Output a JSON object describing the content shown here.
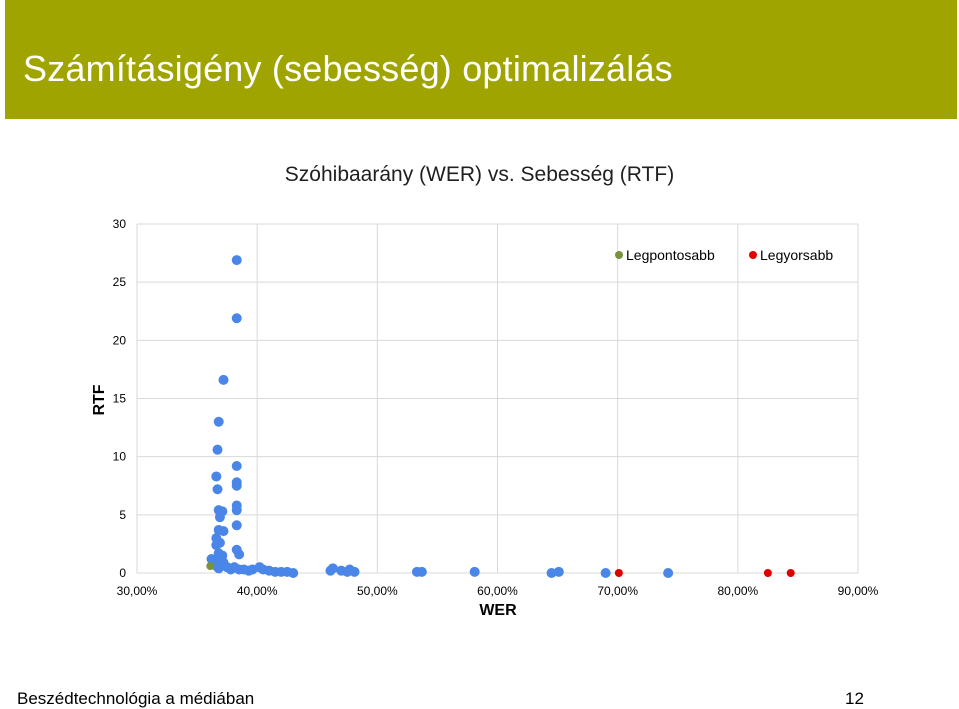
{
  "slide": {
    "title": "Számításigény (sebesség) optimalizálás",
    "footer_left": "Beszédtechnológia a médiában",
    "page_number": "12",
    "accent_color": "#a0a400"
  },
  "chart_data": {
    "type": "scatter",
    "title": "Szóhibaarány (WER) vs. Sebesség (RTF)",
    "xlabel": "WER",
    "ylabel": "RTF",
    "xlim": [
      0.3,
      0.9
    ],
    "ylim": [
      0,
      30
    ],
    "xticks": [
      "30,00%",
      "40,00%",
      "50,00%",
      "60,00%",
      "70,00%",
      "80,00%",
      "90,00%"
    ],
    "yticks": [
      "0",
      "5",
      "10",
      "15",
      "20",
      "25",
      "30"
    ],
    "grid": true,
    "legend_position": "top-right",
    "series": [
      {
        "color": "#4a86e8",
        "points": [
          [
            0.383,
            26.9
          ],
          [
            0.383,
            21.9
          ],
          [
            0.372,
            16.6
          ],
          [
            0.368,
            13.0
          ],
          [
            0.367,
            10.6
          ],
          [
            0.383,
            9.2
          ],
          [
            0.366,
            8.3
          ],
          [
            0.383,
            7.8
          ],
          [
            0.383,
            7.5
          ],
          [
            0.367,
            7.2
          ],
          [
            0.383,
            5.8
          ],
          [
            0.383,
            5.4
          ],
          [
            0.368,
            5.4
          ],
          [
            0.371,
            5.3
          ],
          [
            0.369,
            4.8
          ],
          [
            0.383,
            4.1
          ],
          [
            0.368,
            3.7
          ],
          [
            0.372,
            3.6
          ],
          [
            0.366,
            3.0
          ],
          [
            0.369,
            2.6
          ],
          [
            0.366,
            2.4
          ],
          [
            0.383,
            2.0
          ],
          [
            0.385,
            1.6
          ],
          [
            0.368,
            1.7
          ],
          [
            0.371,
            1.5
          ],
          [
            0.362,
            1.2
          ],
          [
            0.365,
            1.0
          ],
          [
            0.372,
            0.9
          ],
          [
            0.366,
            0.6
          ],
          [
            0.368,
            0.4
          ],
          [
            0.375,
            0.5
          ],
          [
            0.378,
            0.3
          ],
          [
            0.381,
            0.5
          ],
          [
            0.385,
            0.3
          ],
          [
            0.389,
            0.3
          ],
          [
            0.393,
            0.2
          ],
          [
            0.396,
            0.3
          ],
          [
            0.402,
            0.5
          ],
          [
            0.405,
            0.3
          ],
          [
            0.41,
            0.2
          ],
          [
            0.415,
            0.1
          ],
          [
            0.42,
            0.1
          ],
          [
            0.425,
            0.1
          ],
          [
            0.43,
            0.0
          ],
          [
            0.461,
            0.2
          ],
          [
            0.463,
            0.4
          ],
          [
            0.47,
            0.2
          ],
          [
            0.475,
            0.1
          ],
          [
            0.477,
            0.3
          ],
          [
            0.481,
            0.1
          ],
          [
            0.533,
            0.1
          ],
          [
            0.537,
            0.1
          ],
          [
            0.581,
            0.1
          ],
          [
            0.645,
            0.0
          ],
          [
            0.651,
            0.1
          ],
          [
            0.69,
            0.0
          ],
          [
            0.742,
            0.0
          ]
        ]
      },
      {
        "name": "Legpontosabb",
        "color": "#77933c",
        "points": [
          [
            0.361,
            0.6
          ]
        ]
      },
      {
        "name": "Legyorsabb",
        "color": "#e00000",
        "points": [
          [
            0.701,
            0.0
          ],
          [
            0.825,
            0.0
          ],
          [
            0.844,
            0.0
          ]
        ]
      }
    ]
  }
}
